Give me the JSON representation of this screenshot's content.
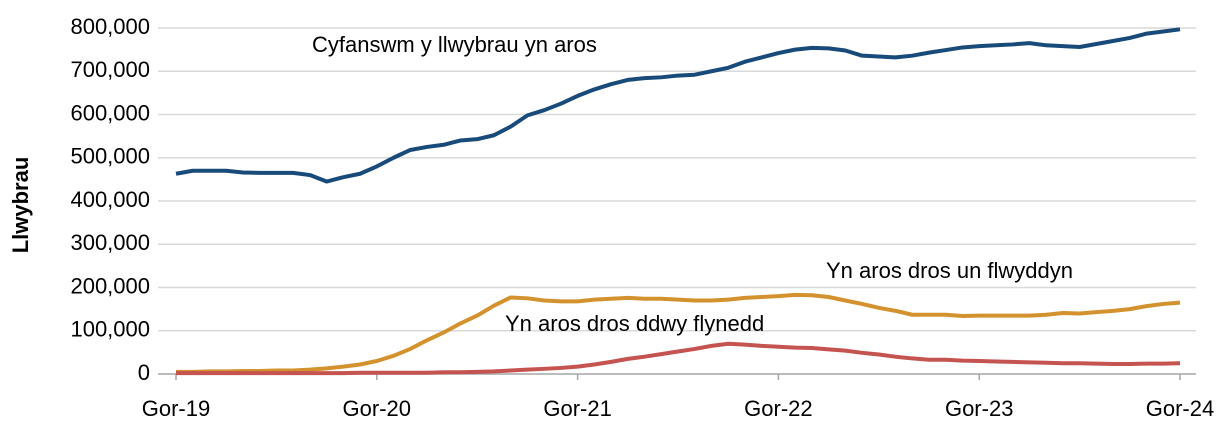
{
  "chart_data": {
    "type": "line",
    "y_label": "Llwybrau",
    "categories": [
      "Gor-19",
      null,
      null,
      null,
      null,
      null,
      null,
      null,
      null,
      null,
      null,
      null,
      "Gor-20",
      null,
      null,
      null,
      null,
      null,
      null,
      null,
      null,
      null,
      null,
      null,
      "Gor-21",
      null,
      null,
      null,
      null,
      null,
      null,
      null,
      null,
      null,
      null,
      null,
      "Gor-22",
      null,
      null,
      null,
      null,
      null,
      null,
      null,
      null,
      null,
      null,
      null,
      "Gor-23",
      null,
      null,
      null,
      null,
      null,
      null,
      null,
      null,
      null,
      null,
      null,
      "Gor-24"
    ],
    "series": [
      {
        "name": "Cyfanswm y llwybrau yn aros",
        "color": "#184a7a",
        "values": [
          463000,
          470000,
          470000,
          470000,
          466000,
          465000,
          465000,
          465000,
          460000,
          445000,
          455000,
          463000,
          480000,
          500000,
          518000,
          525000,
          530000,
          540000,
          543000,
          552000,
          572000,
          598000,
          610000,
          625000,
          643000,
          658000,
          670000,
          680000,
          684000,
          686000,
          690000,
          692000,
          700000,
          708000,
          722000,
          732000,
          742000,
          750000,
          754000,
          753000,
          748000,
          736000,
          734000,
          732000,
          736000,
          743000,
          749000,
          755000,
          758000,
          760000,
          762000,
          765000,
          760000,
          758000,
          756000,
          763000,
          770000,
          777000,
          787000,
          792000,
          797000
        ]
      },
      {
        "name": "Yn aros dros un flwyddyn",
        "color": "#d4922e",
        "values": [
          5000,
          5000,
          6000,
          6000,
          7000,
          7000,
          8000,
          8000,
          10000,
          13000,
          17000,
          22000,
          30000,
          42000,
          58000,
          78000,
          96000,
          117000,
          135000,
          158000,
          177000,
          175000,
          170000,
          168000,
          168000,
          172000,
          174000,
          176000,
          174000,
          174000,
          172000,
          170000,
          170000,
          172000,
          176000,
          178000,
          180000,
          183000,
          182000,
          178000,
          170000,
          162000,
          153000,
          146000,
          137000,
          137000,
          137000,
          134000,
          135000,
          135000,
          135000,
          135000,
          137000,
          141000,
          140000,
          143000,
          146000,
          150000,
          157000,
          162000,
          165000
        ]
      },
      {
        "name": "Yn aros dros ddwy flynedd",
        "color": "#c55350",
        "values": [
          2000,
          2000,
          2000,
          2000,
          2000,
          2000,
          2000,
          2000,
          2000,
          2000,
          2000,
          3000,
          3000,
          3000,
          3000,
          3000,
          4000,
          4000,
          5000,
          6000,
          8000,
          10000,
          12000,
          14000,
          17000,
          22000,
          28000,
          35000,
          40000,
          46000,
          52000,
          58000,
          65000,
          70000,
          68000,
          65000,
          63000,
          61000,
          60000,
          57000,
          54000,
          49000,
          45000,
          40000,
          36000,
          33000,
          33000,
          31000,
          30000,
          29000,
          28000,
          27000,
          26000,
          25000,
          25000,
          24000,
          23000,
          23000,
          24000,
          24000,
          25000
        ]
      }
    ],
    "ylim": [
      0,
      800000
    ],
    "yticks": [
      0,
      {
        "value": 100000,
        "label": "100,000"
      },
      {
        "value": 200000,
        "label": "200,000"
      },
      {
        "value": 300000,
        "label": "300,000"
      },
      {
        "value": 400000,
        "label": "400,000"
      },
      {
        "value": 500000,
        "label": "500,000"
      },
      {
        "value": 600000,
        "label": "600,000"
      },
      {
        "value": 700000,
        "label": "700,000"
      },
      {
        "value": 800000,
        "label": "800,000"
      }
    ],
    "grid": true
  }
}
